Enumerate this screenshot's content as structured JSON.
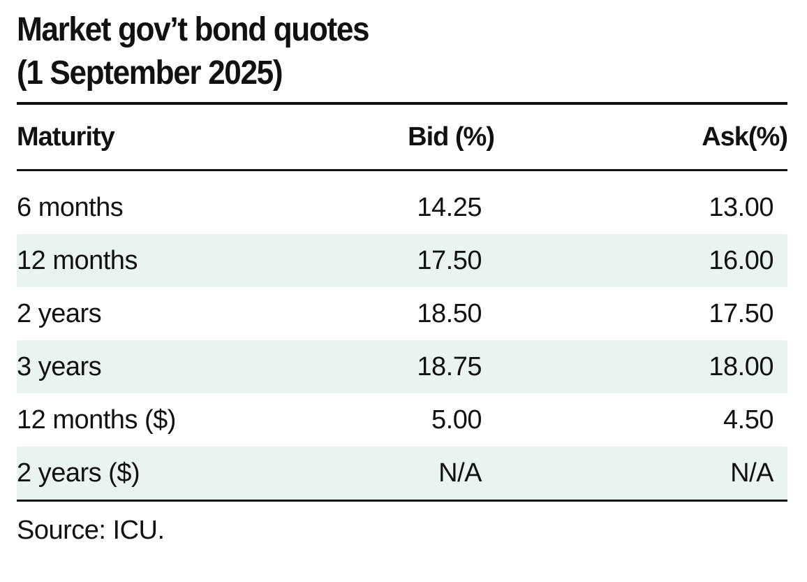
{
  "title": {
    "line1": "Market gov’t bond quotes",
    "line2": "(1 September 2025)"
  },
  "table": {
    "headers": {
      "maturity": "Maturity",
      "bid": "Bid (%)",
      "ask": "Ask(%)"
    },
    "rows": [
      {
        "maturity": "6 months",
        "bid": "14.25",
        "ask": "13.00"
      },
      {
        "maturity": "12 months",
        "bid": "17.50",
        "ask": "16.00"
      },
      {
        "maturity": "2 years",
        "bid": "18.50",
        "ask": "17.50"
      },
      {
        "maturity": "3 years",
        "bid": "18.75",
        "ask": "18.00"
      },
      {
        "maturity": "12 months ($)",
        "bid": "5.00",
        "ask": "4.50"
      },
      {
        "maturity": "2 years ($)",
        "bid": "N/A",
        "ask": "N/A"
      }
    ]
  },
  "source": "Source: ICU.",
  "colors": {
    "row_shade": "#e9f3f1",
    "rule": "#111111",
    "text": "#111111"
  }
}
